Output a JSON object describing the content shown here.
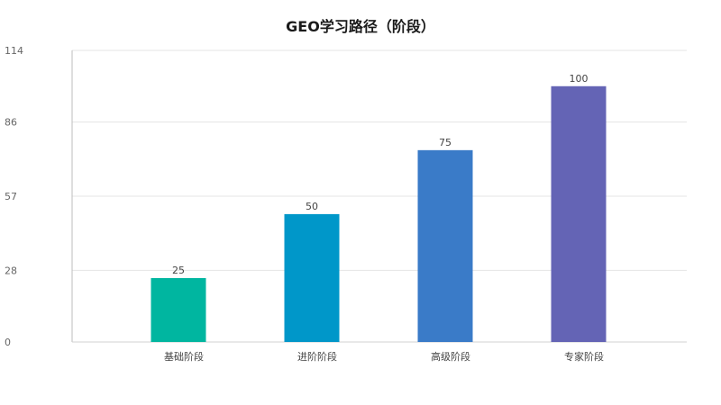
{
  "chart_data": {
    "type": "bar",
    "title": "GEO学习路径（阶段）",
    "xlabel": "",
    "ylabel": "",
    "categories": [
      "基础阶段",
      "进阶阶段",
      "高级阶段",
      "专家阶段"
    ],
    "values": [
      25,
      50,
      75,
      100
    ],
    "data_labels": [
      "25",
      "50",
      "75",
      "100"
    ],
    "colors": [
      "#00b6a0",
      "#0097c9",
      "#3a7bc8",
      "#6464b5"
    ],
    "ylim": [
      0,
      114
    ],
    "yticks": [
      0,
      28,
      57,
      86,
      114
    ],
    "ytick_labels": [
      "0",
      "28",
      "57",
      "86",
      "114"
    ],
    "grid": true,
    "legend": "none"
  }
}
